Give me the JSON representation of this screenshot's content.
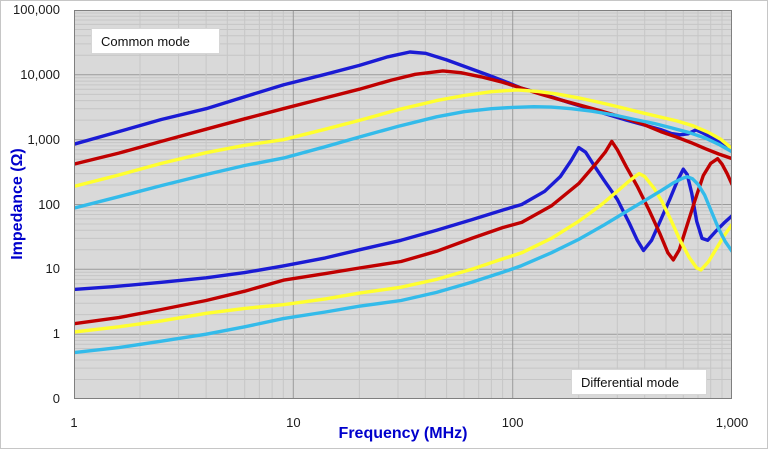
{
  "chart_data": {
    "type": "line",
    "title": "",
    "x_axis": {
      "label": "Frequency (MHz)",
      "scale": "log",
      "min": 1,
      "max": 1000,
      "ticks": [
        {
          "v": 1,
          "label": "1"
        },
        {
          "v": 10,
          "label": "10"
        },
        {
          "v": 100,
          "label": "100"
        },
        {
          "v": 1000,
          "label": "1,000"
        }
      ]
    },
    "y_axis": {
      "label": "Impedance (Ω)",
      "scale": "log",
      "min": 0.1,
      "max": 100000,
      "ticks": [
        {
          "v": 100000,
          "label": "100,000"
        },
        {
          "v": 10000,
          "label": "10,000"
        },
        {
          "v": 1000,
          "label": "1,000"
        },
        {
          "v": 100,
          "label": "100"
        },
        {
          "v": 10,
          "label": "10"
        },
        {
          "v": 1,
          "label": "1"
        },
        {
          "v": 0.1,
          "label": "0"
        }
      ]
    },
    "grid": {
      "plot_bg": "#d9d9d9",
      "major": "#9b9b9b",
      "minor": "#c6c6c6",
      "border": "#7f7f7f"
    },
    "annotations": [
      {
        "id": "common-mode",
        "text": "Common mode"
      },
      {
        "id": "differential-mode",
        "text": "Differential mode"
      }
    ],
    "colors": {
      "blue": "#1b1bd4",
      "red": "#c00000",
      "yellow": "#ffff2e",
      "cyan": "#33bbea",
      "axis_title": "#0000cc"
    },
    "series": [
      {
        "id": "common-blue",
        "name": "Common mode - blue",
        "mode": "common",
        "color": "#1b1bd4",
        "points": [
          [
            1,
            850
          ],
          [
            1.5,
            1250
          ],
          [
            2.5,
            2050
          ],
          [
            4,
            3000
          ],
          [
            6,
            4600
          ],
          [
            9,
            7000
          ],
          [
            14,
            10200
          ],
          [
            20,
            14000
          ],
          [
            27,
            19000
          ],
          [
            34,
            22500
          ],
          [
            40,
            21500
          ],
          [
            50,
            17000
          ],
          [
            62,
            13000
          ],
          [
            78,
            9800
          ],
          [
            95,
            7600
          ],
          [
            110,
            6200
          ],
          [
            130,
            5300
          ],
          [
            150,
            4600
          ],
          [
            180,
            3750
          ],
          [
            220,
            3050
          ],
          [
            270,
            2450
          ],
          [
            330,
            2000
          ],
          [
            400,
            1680
          ],
          [
            473,
            1430
          ],
          [
            530,
            1240
          ],
          [
            580,
            1190
          ],
          [
            630,
            1230
          ],
          [
            686,
            1420
          ],
          [
            740,
            1260
          ],
          [
            820,
            1050
          ],
          [
            910,
            880
          ],
          [
            1000,
            760
          ]
        ]
      },
      {
        "id": "common-red",
        "name": "Common mode - red",
        "mode": "common",
        "color": "#c00000",
        "points": [
          [
            1,
            420
          ],
          [
            1.6,
            620
          ],
          [
            2.5,
            940
          ],
          [
            4,
            1450
          ],
          [
            6,
            2100
          ],
          [
            9,
            3000
          ],
          [
            14,
            4400
          ],
          [
            20,
            6000
          ],
          [
            28,
            8300
          ],
          [
            36,
            10200
          ],
          [
            48,
            11500
          ],
          [
            58,
            10800
          ],
          [
            72,
            9300
          ],
          [
            90,
            7700
          ],
          [
            110,
            6200
          ],
          [
            135,
            5000
          ],
          [
            165,
            4100
          ],
          [
            200,
            3450
          ],
          [
            250,
            2800
          ],
          [
            310,
            2250
          ],
          [
            390,
            1750
          ],
          [
            473,
            1330
          ],
          [
            560,
            1090
          ],
          [
            650,
            900
          ],
          [
            760,
            720
          ],
          [
            870,
            600
          ],
          [
            1000,
            510
          ]
        ]
      },
      {
        "id": "common-yellow",
        "name": "Common mode - yellow",
        "mode": "common",
        "color": "#ffff2e",
        "points": [
          [
            1,
            190
          ],
          [
            1.6,
            285
          ],
          [
            2.5,
            430
          ],
          [
            4,
            630
          ],
          [
            6,
            820
          ],
          [
            9,
            1000
          ],
          [
            14,
            1450
          ],
          [
            20,
            1980
          ],
          [
            30,
            2900
          ],
          [
            45,
            4000
          ],
          [
            60,
            4800
          ],
          [
            80,
            5500
          ],
          [
            105,
            5850
          ],
          [
            130,
            5550
          ],
          [
            160,
            5050
          ],
          [
            200,
            4400
          ],
          [
            250,
            3750
          ],
          [
            310,
            3150
          ],
          [
            390,
            2600
          ],
          [
            473,
            2230
          ],
          [
            560,
            1950
          ],
          [
            660,
            1650
          ],
          [
            780,
            1300
          ],
          [
            890,
            1010
          ],
          [
            1000,
            730
          ]
        ]
      },
      {
        "id": "common-cyan",
        "name": "Common mode - cyan",
        "mode": "common",
        "color": "#33bbea",
        "points": [
          [
            1,
            88
          ],
          [
            1.6,
            132
          ],
          [
            2.5,
            196
          ],
          [
            4,
            290
          ],
          [
            6,
            400
          ],
          [
            9,
            520
          ],
          [
            14,
            780
          ],
          [
            20,
            1100
          ],
          [
            30,
            1600
          ],
          [
            45,
            2250
          ],
          [
            60,
            2700
          ],
          [
            80,
            3000
          ],
          [
            100,
            3150
          ],
          [
            125,
            3220
          ],
          [
            150,
            3180
          ],
          [
            185,
            3000
          ],
          [
            230,
            2750
          ],
          [
            290,
            2400
          ],
          [
            360,
            2050
          ],
          [
            440,
            1780
          ],
          [
            530,
            1520
          ],
          [
            640,
            1280
          ],
          [
            760,
            1050
          ],
          [
            880,
            830
          ],
          [
            1000,
            650
          ]
        ]
      },
      {
        "id": "diff-blue",
        "name": "Differential mode - blue",
        "mode": "differential",
        "color": "#1b1bd4",
        "points": [
          [
            1,
            4.9
          ],
          [
            1.5,
            5.4
          ],
          [
            2.5,
            6.3
          ],
          [
            4,
            7.4
          ],
          [
            6,
            8.9
          ],
          [
            9,
            11.3
          ],
          [
            14,
            15
          ],
          [
            20,
            20
          ],
          [
            31,
            28
          ],
          [
            45,
            40
          ],
          [
            65,
            58
          ],
          [
            90,
            82
          ],
          [
            110,
            100
          ],
          [
            140,
            160
          ],
          [
            165,
            270
          ],
          [
            185,
            480
          ],
          [
            200,
            755
          ],
          [
            215,
            640
          ],
          [
            235,
            400
          ],
          [
            260,
            240
          ],
          [
            300,
            120
          ],
          [
            340,
            52
          ],
          [
            370,
            28
          ],
          [
            395,
            19.5
          ],
          [
            430,
            28
          ],
          [
            470,
            55
          ],
          [
            520,
            120
          ],
          [
            565,
            235
          ],
          [
            600,
            350
          ],
          [
            625,
            290
          ],
          [
            655,
            150
          ],
          [
            690,
            55
          ],
          [
            730,
            30
          ],
          [
            775,
            28
          ],
          [
            840,
            38
          ],
          [
            920,
            52
          ],
          [
            1000,
            67
          ]
        ]
      },
      {
        "id": "diff-red",
        "name": "Differential mode - red",
        "mode": "differential",
        "color": "#c00000",
        "points": [
          [
            1,
            1.45
          ],
          [
            1.6,
            1.8
          ],
          [
            2.5,
            2.4
          ],
          [
            4,
            3.3
          ],
          [
            6,
            4.6
          ],
          [
            9,
            6.8
          ],
          [
            14,
            8.6
          ],
          [
            20,
            10.5
          ],
          [
            31,
            13.2
          ],
          [
            45,
            19
          ],
          [
            65,
            30
          ],
          [
            90,
            44
          ],
          [
            110,
            53
          ],
          [
            150,
            95
          ],
          [
            200,
            210
          ],
          [
            240,
            430
          ],
          [
            265,
            650
          ],
          [
            283,
            940
          ],
          [
            300,
            700
          ],
          [
            330,
            380
          ],
          [
            370,
            190
          ],
          [
            420,
            80
          ],
          [
            470,
            35
          ],
          [
            510,
            18
          ],
          [
            540,
            14
          ],
          [
            575,
            20
          ],
          [
            620,
            45
          ],
          [
            680,
            120
          ],
          [
            740,
            280
          ],
          [
            800,
            430
          ],
          [
            860,
            508
          ],
          [
            900,
            420
          ],
          [
            950,
            300
          ],
          [
            1000,
            205
          ]
        ]
      },
      {
        "id": "diff-yellow",
        "name": "Differential mode - yellow",
        "mode": "differential",
        "color": "#ffff2e",
        "points": [
          [
            1,
            1.08
          ],
          [
            1.6,
            1.3
          ],
          [
            2.5,
            1.6
          ],
          [
            4,
            2.1
          ],
          [
            6,
            2.5
          ],
          [
            9,
            2.85
          ],
          [
            14,
            3.5
          ],
          [
            20,
            4.3
          ],
          [
            31,
            5.3
          ],
          [
            45,
            7
          ],
          [
            65,
            10
          ],
          [
            90,
            14.5
          ],
          [
            110,
            18
          ],
          [
            150,
            30
          ],
          [
            200,
            55
          ],
          [
            250,
            95
          ],
          [
            300,
            160
          ],
          [
            340,
            230
          ],
          [
            377,
            300
          ],
          [
            400,
            270
          ],
          [
            440,
            180
          ],
          [
            480,
            110
          ],
          [
            530,
            55
          ],
          [
            580,
            28
          ],
          [
            640,
            15
          ],
          [
            690,
            10.5
          ],
          [
            722,
            9.8
          ],
          [
            780,
            13
          ],
          [
            850,
            21
          ],
          [
            920,
            33
          ],
          [
            1000,
            49
          ]
        ]
      },
      {
        "id": "diff-cyan",
        "name": "Differential mode - cyan",
        "mode": "differential",
        "color": "#33bbea",
        "points": [
          [
            1,
            0.52
          ],
          [
            1.6,
            0.62
          ],
          [
            2.5,
            0.78
          ],
          [
            4,
            1.0
          ],
          [
            6,
            1.3
          ],
          [
            9,
            1.74
          ],
          [
            14,
            2.2
          ],
          [
            20,
            2.7
          ],
          [
            31,
            3.3
          ],
          [
            45,
            4.4
          ],
          [
            65,
            6.3
          ],
          [
            90,
            9
          ],
          [
            110,
            11.4
          ],
          [
            150,
            18
          ],
          [
            200,
            29
          ],
          [
            260,
            48
          ],
          [
            330,
            78
          ],
          [
            400,
            115
          ],
          [
            470,
            160
          ],
          [
            540,
            215
          ],
          [
            590,
            250
          ],
          [
            624,
            268
          ],
          [
            660,
            250
          ],
          [
            700,
            205
          ],
          [
            750,
            140
          ],
          [
            810,
            75
          ],
          [
            870,
            42
          ],
          [
            930,
            27
          ],
          [
            1000,
            19
          ]
        ]
      }
    ]
  }
}
